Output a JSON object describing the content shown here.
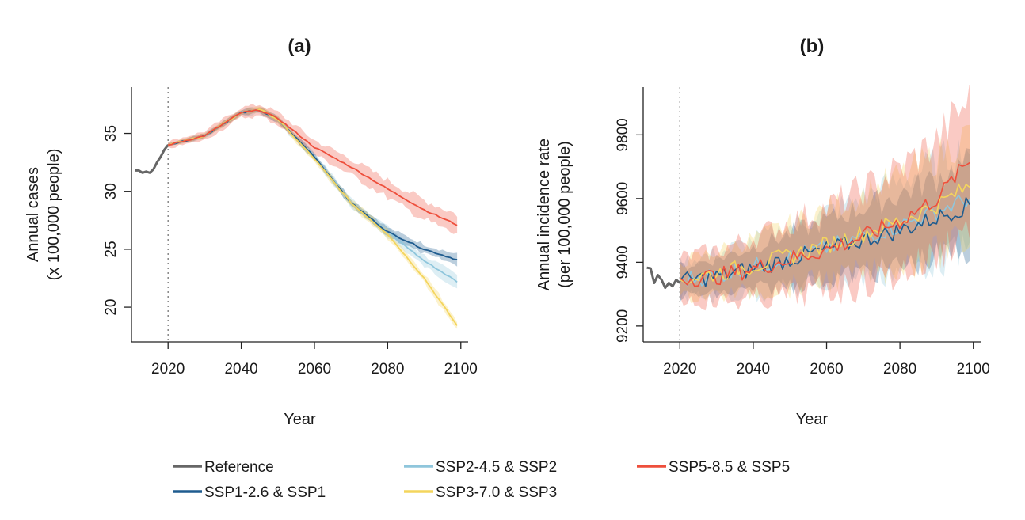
{
  "chart_data": [
    {
      "type": "line",
      "title": "(a)",
      "xlabel": "Year",
      "ylabel_lines": [
        "Annual cases",
        "(x 100,000 people)"
      ],
      "xlim": [
        2010,
        2102
      ],
      "ylim": [
        17,
        39
      ],
      "xticks": [
        2020,
        2040,
        2060,
        2080,
        2100
      ],
      "yticks": [
        20,
        25,
        30,
        35
      ],
      "vline_x": 2020,
      "series": [
        {
          "key": "ref",
          "name": "Reference",
          "x": [
            2011,
            2012,
            2013,
            2014,
            2015,
            2016,
            2017,
            2018,
            2019,
            2020
          ],
          "y": [
            31.8,
            31.8,
            31.6,
            31.7,
            31.6,
            31.9,
            32.5,
            33.0,
            33.6,
            34.0
          ]
        },
        {
          "key": "ssp1",
          "name": "SSP1-2.6 & SSP1",
          "x": [
            2020,
            2030,
            2040,
            2045,
            2050,
            2060,
            2070,
            2080,
            2090,
            2099
          ],
          "y": [
            34.0,
            34.8,
            36.8,
            37.0,
            36.2,
            33.0,
            29.0,
            26.5,
            25.0,
            24.1
          ],
          "band": 0.3
        },
        {
          "key": "ssp2",
          "name": "SSP2-4.5 & SSP2",
          "x": [
            2020,
            2030,
            2040,
            2045,
            2050,
            2060,
            2070,
            2080,
            2090,
            2099
          ],
          "y": [
            34.0,
            34.8,
            36.8,
            37.0,
            36.2,
            33.0,
            29.0,
            26.5,
            24.0,
            22.2
          ],
          "band": 0.35
        },
        {
          "key": "ssp3",
          "name": "SSP3-7.0 & SSP3",
          "x": [
            2020,
            2030,
            2040,
            2045,
            2050,
            2060,
            2070,
            2080,
            2090,
            2099
          ],
          "y": [
            34.0,
            34.8,
            36.8,
            37.1,
            36.2,
            32.8,
            29.0,
            26.3,
            22.5,
            18.4
          ],
          "band": 0.3
        },
        {
          "key": "ssp5",
          "name": "SSP5-8.5 & SSP5",
          "x": [
            2020,
            2030,
            2040,
            2045,
            2050,
            2060,
            2070,
            2080,
            2090,
            2099
          ],
          "y": [
            34.0,
            34.8,
            36.8,
            37.0,
            36.3,
            33.8,
            32.1,
            30.2,
            28.4,
            27.1
          ],
          "band": 0.6
        }
      ]
    },
    {
      "type": "line",
      "title": "(b)",
      "xlabel": "Year",
      "ylabel_lines": [
        "Annual incidence rate",
        "(per 100,000 people)"
      ],
      "xlim": [
        2010,
        2102
      ],
      "ylim": [
        9150,
        9950
      ],
      "xticks": [
        2020,
        2040,
        2060,
        2080,
        2100
      ],
      "yticks": [
        9200,
        9400,
        9600,
        9800
      ],
      "vline_x": 2020,
      "series": [
        {
          "key": "ref",
          "name": "Reference",
          "x": [
            2011,
            2012,
            2013,
            2014,
            2015,
            2016,
            2017,
            2018,
            2019,
            2020
          ],
          "y": [
            9383,
            9381,
            9335,
            9360,
            9345,
            9320,
            9335,
            9325,
            9345,
            9335
          ]
        },
        {
          "key": "ssp1",
          "name": "SSP1-2.6 & SSP1",
          "x": [
            2020,
            2030,
            2040,
            2050,
            2060,
            2070,
            2080,
            2090,
            2099
          ],
          "y": [
            9340,
            9355,
            9380,
            9410,
            9440,
            9470,
            9500,
            9540,
            9580
          ],
          "band": 90
        },
        {
          "key": "ssp2",
          "name": "SSP2-4.5 & SSP2",
          "x": [
            2020,
            2030,
            2040,
            2050,
            2060,
            2070,
            2080,
            2090,
            2099
          ],
          "y": [
            9345,
            9360,
            9385,
            9415,
            9445,
            9480,
            9515,
            9560,
            9600
          ],
          "band": 110
        },
        {
          "key": "ssp3",
          "name": "SSP3-7.0 & SSP3",
          "x": [
            2020,
            2030,
            2040,
            2050,
            2060,
            2070,
            2080,
            2090,
            2099
          ],
          "y": [
            9345,
            9365,
            9390,
            9420,
            9455,
            9490,
            9530,
            9580,
            9640
          ],
          "band": 110
        },
        {
          "key": "ssp5",
          "name": "SSP5-8.5 & SSP5",
          "x": [
            2020,
            2030,
            2040,
            2050,
            2060,
            2070,
            2080,
            2090,
            2099
          ],
          "y": [
            9350,
            9355,
            9380,
            9410,
            9440,
            9480,
            9530,
            9600,
            9720
          ],
          "band": 130
        }
      ]
    }
  ],
  "colors": {
    "ref": "#666666",
    "ssp1": "#1f5c8f",
    "ssp2": "#8fc6dc",
    "ssp3": "#f4d55d",
    "ssp5": "#ee4f3c"
  },
  "legend": [
    {
      "key": "ref",
      "label": "Reference"
    },
    {
      "key": "ssp2",
      "label": "SSP2-4.5 & SSP2"
    },
    {
      "key": "ssp5",
      "label": "SSP5-8.5 & SSP5"
    },
    {
      "key": "ssp1",
      "label": "SSP1-2.6 & SSP1"
    },
    {
      "key": "ssp3",
      "label": "SSP3-7.0 & SSP3"
    }
  ]
}
